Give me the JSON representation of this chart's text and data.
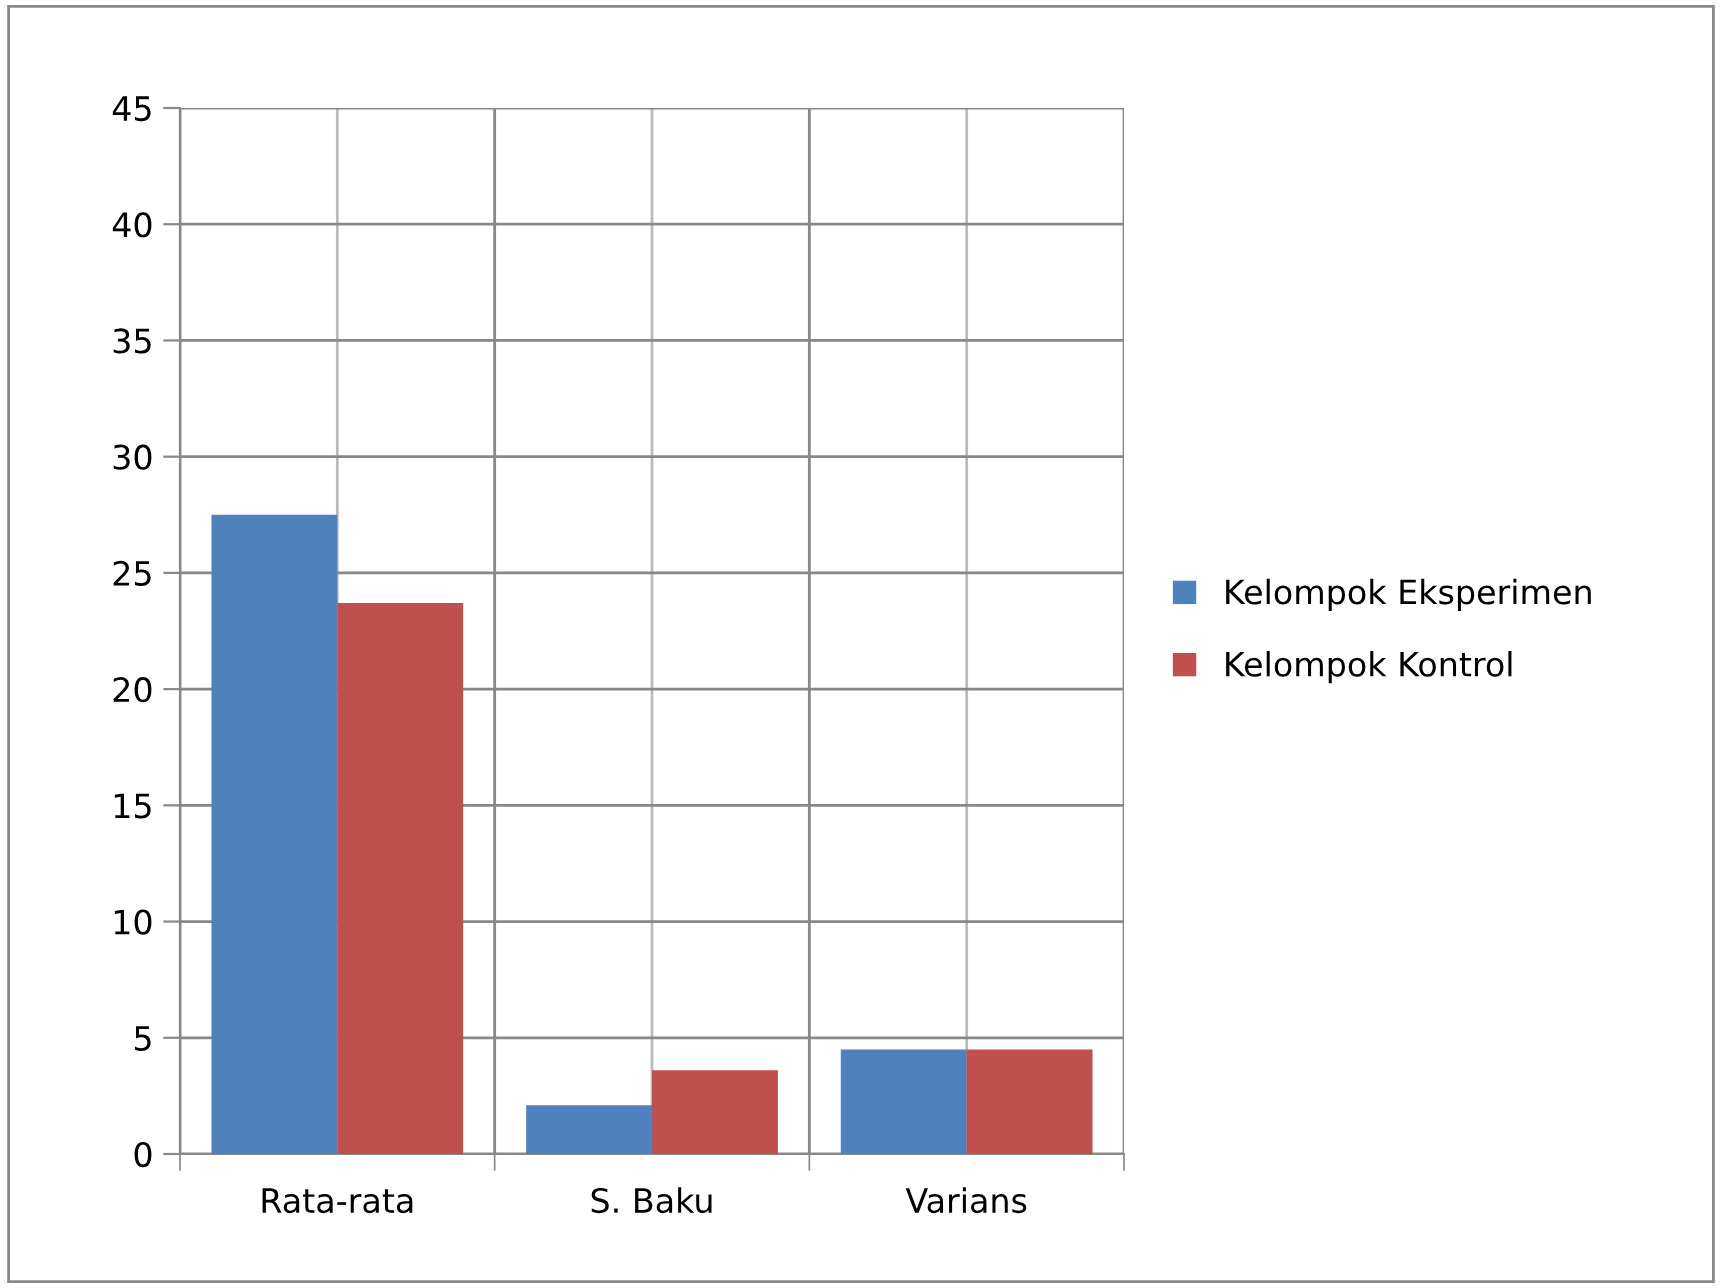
{
  "chart_data": {
    "type": "bar",
    "categories": [
      "Rata-rata",
      "S. Baku",
      "Varians"
    ],
    "series": [
      {
        "name": "Kelompok Eksperimen",
        "color": "#4f81bd",
        "values": [
          27.5,
          2.1,
          4.5
        ]
      },
      {
        "name": "Kelompok Kontrol",
        "color": "#c0504d",
        "values": [
          23.7,
          3.6,
          4.5
        ]
      }
    ],
    "ylim": [
      0,
      45
    ],
    "yticks": [
      0,
      5,
      10,
      15,
      20,
      25,
      30,
      35,
      40,
      45
    ],
    "grid": true,
    "legend": "right"
  }
}
